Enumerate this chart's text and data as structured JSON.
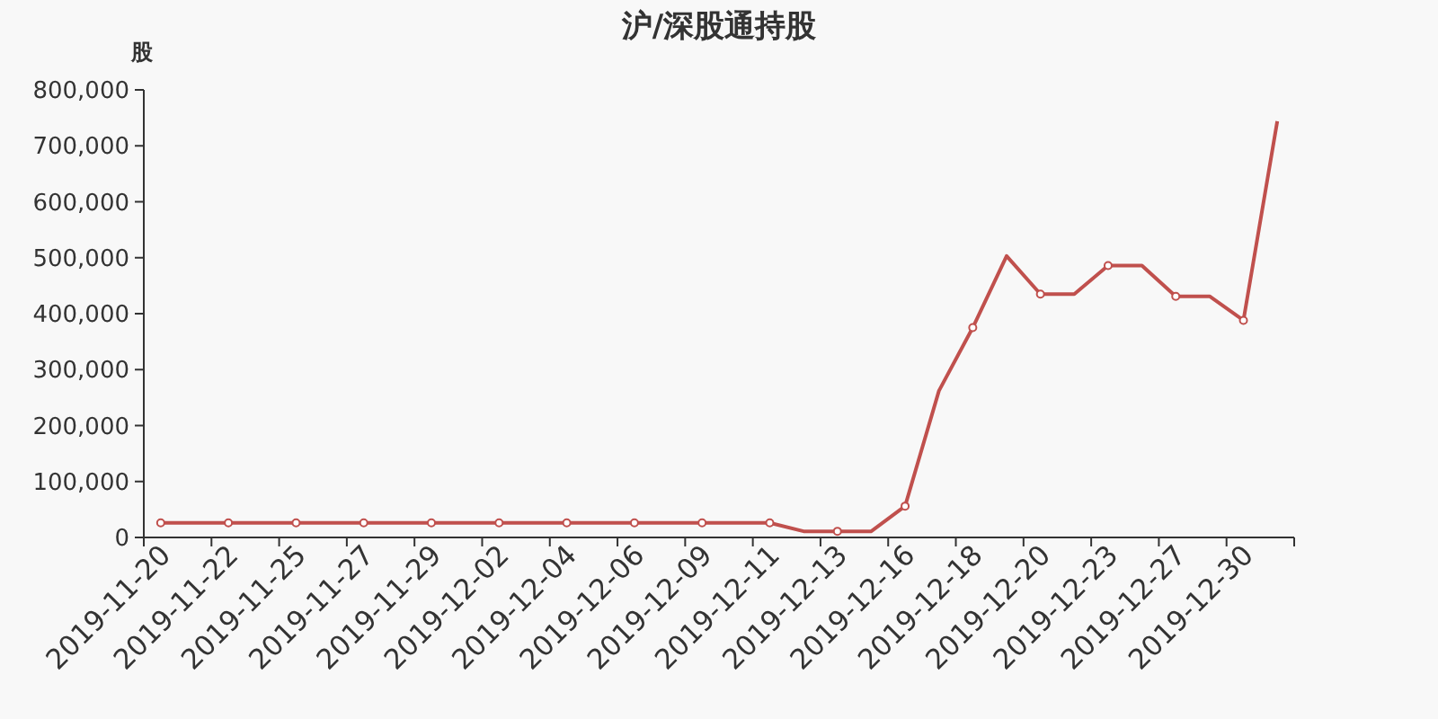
{
  "chart_data": {
    "type": "line",
    "title": "沪/深股通持股",
    "ylabel": "股",
    "categories": [
      "2019-11-20",
      null,
      "2019-11-22",
      null,
      "2019-11-25",
      null,
      "2019-11-27",
      null,
      "2019-11-29",
      null,
      "2019-12-02",
      null,
      "2019-12-04",
      null,
      "2019-12-06",
      null,
      "2019-12-09",
      null,
      "2019-12-11",
      null,
      "2019-12-13",
      null,
      "2019-12-16",
      null,
      "2019-12-18",
      null,
      "2019-12-20",
      null,
      "2019-12-23",
      null,
      "2019-12-27",
      null,
      "2019-12-30",
      null
    ],
    "series": [
      {
        "color": "#c0504d",
        "values": [
          26000,
          26000,
          26000,
          26000,
          26000,
          26000,
          26000,
          26000,
          26000,
          26000,
          26000,
          26000,
          26000,
          26000,
          26000,
          26000,
          26000,
          26000,
          26000,
          11000,
          11000,
          11000,
          56000,
          262000,
          375000,
          503000,
          435000,
          435000,
          486000,
          486000,
          431000,
          431000,
          388000,
          744000
        ]
      }
    ],
    "ylim": [
      0,
      800000
    ],
    "yticks": [
      {
        "value": 0,
        "label": "0"
      },
      {
        "value": 100000,
        "label": "100,000"
      },
      {
        "value": 200000,
        "label": "200,000"
      },
      {
        "value": 300000,
        "label": "300,000"
      },
      {
        "value": 400000,
        "label": "400,000"
      },
      {
        "value": 500000,
        "label": "500,000"
      },
      {
        "value": 600000,
        "label": "600,000"
      },
      {
        "value": 700000,
        "label": "700,000"
      },
      {
        "value": 800000,
        "label": "800,000"
      }
    ],
    "grid": false,
    "marker": "circle",
    "line_style": "solid"
  }
}
